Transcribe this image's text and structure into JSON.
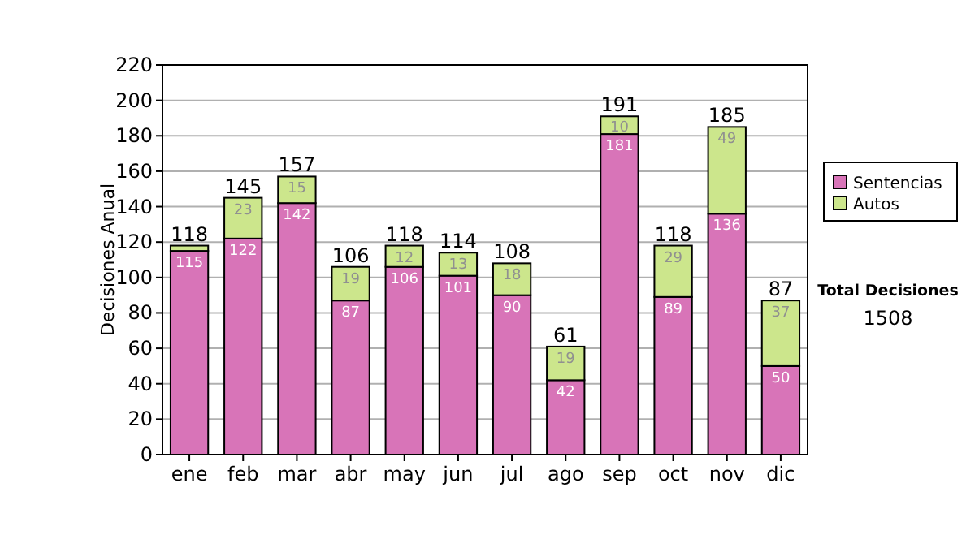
{
  "chart_data": {
    "type": "bar",
    "stacked": true,
    "ylabel": "Decisiones Anual",
    "categories": [
      "ene",
      "feb",
      "mar",
      "abr",
      "may",
      "jun",
      "jul",
      "ago",
      "sep",
      "oct",
      "nov",
      "dic"
    ],
    "series": [
      {
        "name": "Sentencias",
        "color": "#d874b8",
        "values": [
          115,
          122,
          142,
          87,
          106,
          101,
          90,
          42,
          181,
          89,
          136,
          50
        ],
        "value_labels": [
          "115",
          "122",
          "142",
          "87",
          "106",
          "101",
          "90",
          "42",
          "181",
          "89",
          "136",
          "50"
        ]
      },
      {
        "name": "Autos",
        "color": "#cce68c",
        "values": [
          3,
          23,
          15,
          19,
          12,
          13,
          18,
          19,
          10,
          29,
          49,
          37
        ],
        "value_labels": [
          null,
          "23",
          "15",
          "19",
          "12",
          "13",
          "18",
          "19",
          "10",
          "29",
          "49",
          "37"
        ]
      }
    ],
    "totals": [
      "118",
      "145",
      "157",
      "106",
      "118",
      "114",
      "108",
      "61",
      "191",
      "118",
      "185",
      "87"
    ],
    "ylim": [
      0,
      220
    ],
    "yticks": [
      0,
      20,
      40,
      60,
      80,
      100,
      120,
      140,
      160,
      180,
      200,
      220
    ],
    "grid": "y",
    "legend": "right",
    "annotations": [
      "Total Decisiones",
      "1508"
    ]
  }
}
